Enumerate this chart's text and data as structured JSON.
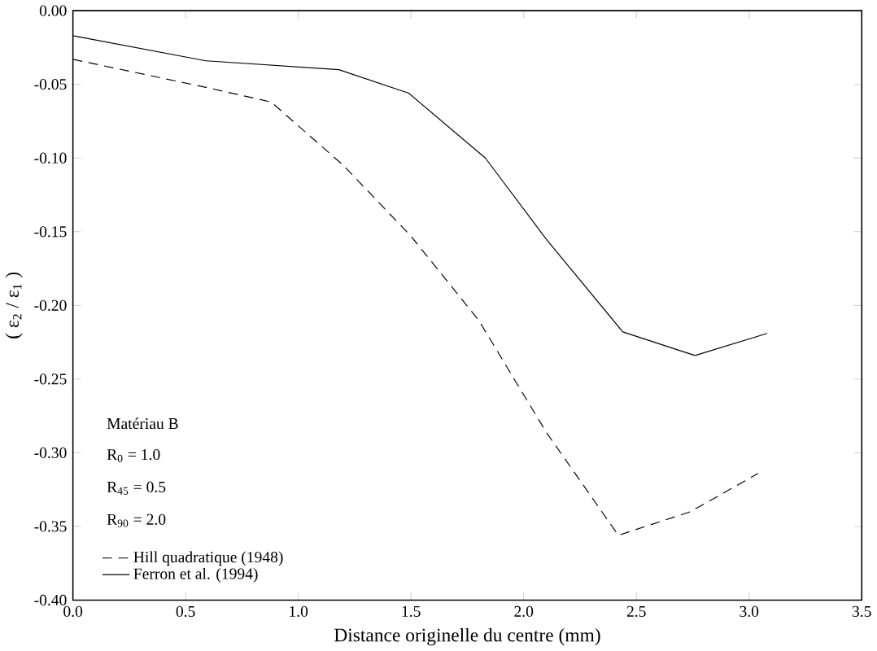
{
  "chart_data": {
    "type": "line",
    "xlabel": "Distance originelle du centre (mm)",
    "ylabel": "( ε$_{2}$ / ε$_{1}$ )",
    "x": [
      0.0,
      0.59,
      0.88,
      1.2,
      1.5,
      1.8,
      2.1,
      2.42,
      2.74,
      3.04
    ],
    "series": [
      {
        "name": "Hill quadratique (1948)",
        "color": "#000000",
        "line_style": "dashed",
        "values": [
          -0.033,
          -0.052,
          -0.062,
          -0.105,
          -0.153,
          -0.21,
          -0.286,
          -0.356,
          -0.34,
          -0.314
        ]
      },
      {
        "name": "Ferron et al. (1994)",
        "color": "#000000",
        "line_style": "solid",
        "x": [
          0.0,
          0.59,
          1.18,
          1.49,
          1.83,
          2.1,
          2.44,
          2.76,
          3.08
        ],
        "values": [
          -0.017,
          -0.034,
          -0.04,
          -0.056,
          -0.1,
          -0.155,
          -0.218,
          -0.234,
          -0.219
        ]
      }
    ],
    "xlim": [
      0,
      3.5
    ],
    "ylim": [
      -0.4,
      0
    ],
    "xticks": [
      {
        "value": 0,
        "label": "0.0"
      },
      0.5,
      {
        "value": 1,
        "label": "1.0"
      },
      1.5,
      {
        "value": 2,
        "label": "2.0"
      },
      2.5,
      {
        "value": 3,
        "label": "3.0"
      },
      3.5
    ],
    "yticks": [
      {
        "value": -0.4,
        "label": "-0.40"
      },
      {
        "value": -0.35,
        "label": "-0.35"
      },
      {
        "value": -0.3,
        "label": "-0.30"
      },
      {
        "value": -0.25,
        "label": "-0.25"
      },
      {
        "value": -0.2,
        "label": "-0.20"
      },
      {
        "value": -0.15,
        "label": "-0.15"
      },
      {
        "value": -0.1,
        "label": "-0.10"
      },
      {
        "value": -0.05,
        "label": "-0.05"
      },
      {
        "value": 0,
        "label": "0.00"
      }
    ],
    "annotations": [
      "Matériau B",
      "R$_{0}$ = 1.0",
      "R$_{45}$ = 0.5",
      "R$_{90}$ = 2.0"
    ],
    "legend": "bottom left",
    "grid": false,
    "marker": "none"
  }
}
